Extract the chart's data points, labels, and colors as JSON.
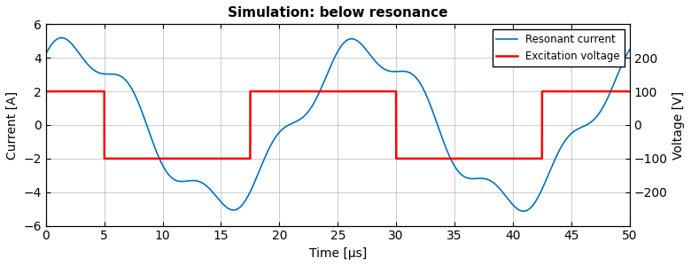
{
  "title": "Simulation: below resonance",
  "xlabel": "Time [μs]",
  "ylabel_left": "Current [A]",
  "ylabel_right": "Voltage [V]",
  "xlim": [
    0,
    50
  ],
  "ylim_left": [
    -6,
    6
  ],
  "ylim_right": [
    -300,
    300
  ],
  "yticks_left": [
    -6,
    -4,
    -2,
    0,
    2,
    4,
    6
  ],
  "yticks_right": [
    -200,
    -100,
    0,
    100,
    200
  ],
  "xticks": [
    0,
    5,
    10,
    15,
    20,
    25,
    30,
    35,
    40,
    45,
    50
  ],
  "current_color": "#0072BD",
  "voltage_color": "#FF0000",
  "background_color": "#FFFFFF",
  "grid_color": "#AAAAAA",
  "legend_labels": [
    "Resonant current",
    "Excitation voltage"
  ],
  "voltage_transitions": [
    0,
    5.0,
    17.5,
    30.0,
    42.5,
    50.0
  ],
  "voltage_levels": [
    100,
    -100,
    100,
    -100,
    100
  ]
}
